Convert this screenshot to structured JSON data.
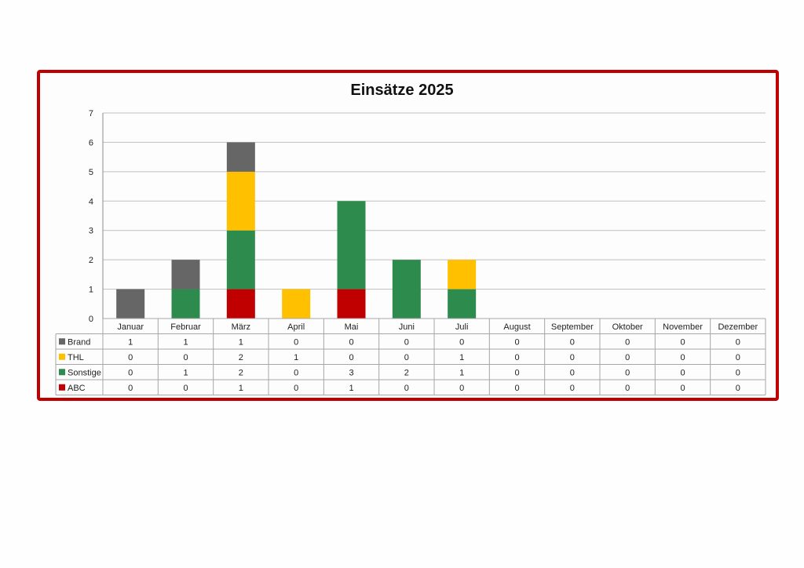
{
  "chart_data": {
    "type": "bar",
    "stacked": true,
    "title": "Einsätze 2025",
    "categories": [
      "Januar",
      "Februar",
      "März",
      "April",
      "Mai",
      "Juni",
      "Juli",
      "August",
      "September",
      "Oktober",
      "November",
      "Dezember"
    ],
    "series": [
      {
        "name": "Brand",
        "color": "#666666",
        "values": [
          1,
          1,
          1,
          0,
          0,
          0,
          0,
          0,
          0,
          0,
          0,
          0
        ]
      },
      {
        "name": "THL",
        "color": "#ffc000",
        "values": [
          0,
          0,
          2,
          1,
          0,
          0,
          1,
          0,
          0,
          0,
          0,
          0
        ]
      },
      {
        "name": "Sonstige",
        "color": "#2e8b4e",
        "values": [
          0,
          1,
          2,
          0,
          3,
          2,
          1,
          0,
          0,
          0,
          0,
          0
        ]
      },
      {
        "name": "ABC",
        "color": "#c00000",
        "values": [
          0,
          0,
          1,
          0,
          1,
          0,
          0,
          0,
          0,
          0,
          0,
          0
        ]
      }
    ],
    "ylim": [
      0,
      7
    ],
    "yticks": [
      0,
      1,
      2,
      3,
      4,
      5,
      6,
      7
    ],
    "grid": true,
    "legend": "data-table-left",
    "frame_color": "#c00000"
  }
}
